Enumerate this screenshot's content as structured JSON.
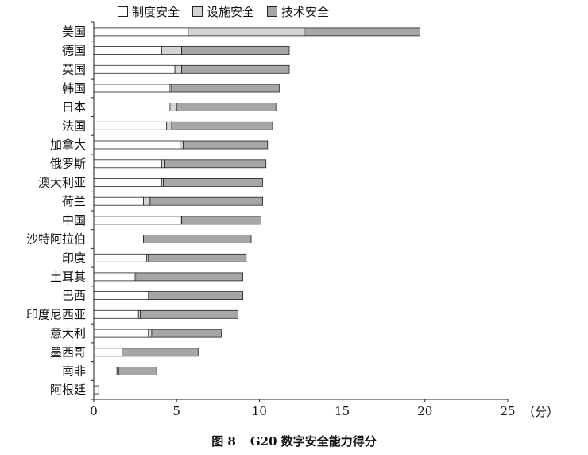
{
  "legend": {
    "items": [
      {
        "label": "制度安全",
        "color": "#ffffff"
      },
      {
        "label": "设施安全",
        "color": "#d4d4d4"
      },
      {
        "label": "技术安全",
        "color": "#a6a6a8"
      }
    ]
  },
  "caption": {
    "number": "图 8",
    "text": "G20 数字安全能力得分"
  },
  "axis_unit": "（分）",
  "chart_data": {
    "type": "bar",
    "orientation": "horizontal",
    "stacked": true,
    "categories": [
      "美国",
      "德国",
      "英国",
      "韩国",
      "日本",
      "法国",
      "加拿大",
      "俄罗斯",
      "澳大利亚",
      "荷兰",
      "中国",
      "沙特阿拉伯",
      "印度",
      "土耳其",
      "巴西",
      "印度尼西亚",
      "意大利",
      "墨西哥",
      "南非",
      "阿根廷"
    ],
    "series": [
      {
        "name": "制度安全",
        "color": "#ffffff",
        "values": [
          5.7,
          4.1,
          4.9,
          4.6,
          4.6,
          4.4,
          5.2,
          4.1,
          4.1,
          3.0,
          5.2,
          3.0,
          3.2,
          2.5,
          3.3,
          2.7,
          3.3,
          1.7,
          1.4,
          0.3
        ]
      },
      {
        "name": "设施安全",
        "color": "#d4d4d4",
        "values": [
          7.0,
          1.2,
          0.4,
          0.1,
          0.4,
          0.3,
          0.2,
          0.2,
          0.1,
          0.4,
          0.1,
          0.0,
          0.1,
          0.1,
          0.0,
          0.1,
          0.2,
          0.0,
          0.1,
          0.0
        ]
      },
      {
        "name": "技术安全",
        "color": "#a6a6a8",
        "values": [
          7.0,
          6.5,
          6.5,
          6.5,
          6.0,
          6.1,
          5.1,
          6.1,
          6.0,
          6.8,
          4.8,
          6.5,
          5.9,
          6.4,
          5.7,
          5.9,
          4.2,
          4.6,
          2.3,
          0.0
        ]
      }
    ],
    "xlim": [
      0,
      25
    ],
    "xticks": [
      0,
      5,
      10,
      15,
      20,
      25
    ],
    "legend_position": "top"
  }
}
